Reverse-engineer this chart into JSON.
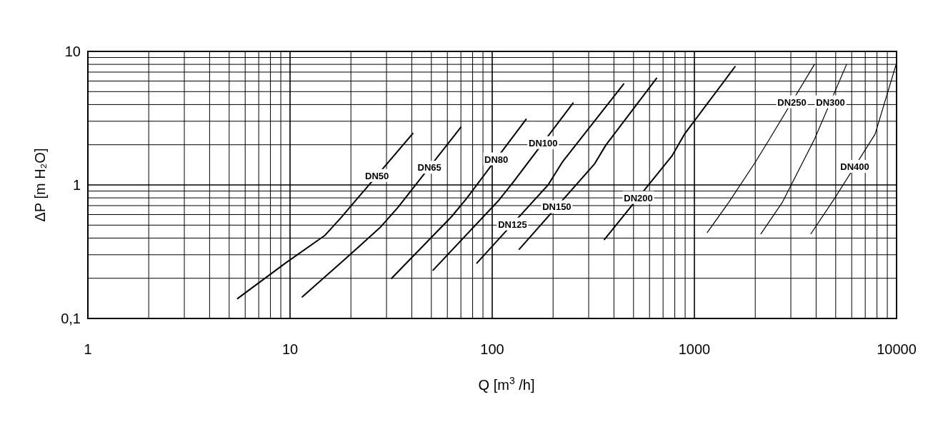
{
  "chart_data": {
    "type": "line",
    "xlabel": "Q [m$^{3}$ /h]",
    "ylabel": "ΔP [m H₂O]",
    "log": "xy",
    "grid": true,
    "marker": "none",
    "line_style": "solid",
    "xlim": [
      1,
      10000
    ],
    "xticks": [
      1,
      10,
      100,
      1000,
      10000
    ],
    "ylim": [
      0.1,
      10
    ],
    "yticks": [
      {
        "value": 0.1,
        "label": "0,1"
      },
      1,
      10
    ],
    "series": [
      {
        "name": "DN50",
        "color": "#000000",
        "x": [
          5.5,
          9.5,
          14.9,
          17.9,
          40.5
        ],
        "values": [
          0.141,
          0.26,
          0.42,
          0.57,
          2.43
        ]
      },
      {
        "name": "DN65",
        "color": "#000000",
        "x": [
          11.5,
          18.3,
          27.9,
          34.2,
          70
        ],
        "values": [
          0.145,
          0.27,
          0.48,
          0.68,
          2.71
        ]
      },
      {
        "name": "DN80",
        "color": "#000000",
        "x": [
          31.8,
          63,
          74.6,
          147
        ],
        "values": [
          0.2,
          0.58,
          0.79,
          3.1
        ]
      },
      {
        "name": "DN100",
        "color": "#000000",
        "x": [
          51,
          108,
          127,
          251
        ],
        "values": [
          0.23,
          0.77,
          1.05,
          4.1
        ]
      },
      {
        "name": "DN125",
        "color": "#000000",
        "x": [
          84,
          189,
          222,
          447
        ],
        "values": [
          0.26,
          1.0,
          1.48,
          5.7
        ]
      },
      {
        "name": "DN150",
        "color": "#000000",
        "x": [
          136,
          320,
          365,
          650
        ],
        "values": [
          0.33,
          1.43,
          1.99,
          6.3
        ]
      },
      {
        "name": "DN200",
        "color": "#000000",
        "x": [
          359,
          777,
          893,
          1589
        ],
        "values": [
          0.39,
          1.66,
          2.4,
          7.7
        ]
      },
      {
        "name": "DN250",
        "color": "#000000",
        "x": [
          1158,
          1479,
          1995,
          2350,
          3926
        ],
        "values": [
          0.44,
          0.74,
          1.47,
          2.2,
          8.0
        ]
      },
      {
        "name": "DN300",
        "color": "#000000",
        "x": [
          2132,
          2722,
          3926,
          5660
        ],
        "values": [
          0.43,
          0.74,
          2.2,
          8.0
        ]
      },
      {
        "name": "DN400",
        "color": "#000000",
        "x": [
          3767,
          4930,
          7830,
          10000
        ],
        "values": [
          0.43,
          0.79,
          2.4,
          8.2
        ]
      }
    ]
  }
}
